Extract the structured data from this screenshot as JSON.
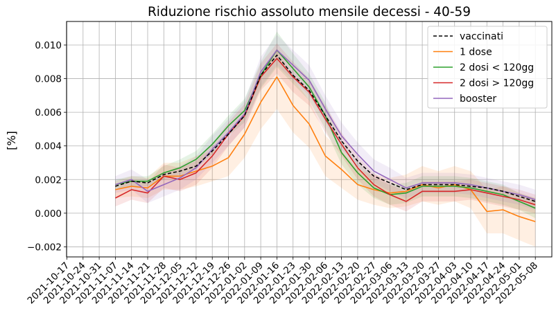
{
  "chart_data": {
    "type": "line",
    "title": "Riduzione rischio assoluto mensile decessi - 40-59",
    "xlabel": "",
    "ylabel": "[%]",
    "ylim": [
      -0.0026,
      0.0114
    ],
    "yticks": [
      -0.002,
      0.0,
      0.002,
      0.004,
      0.006,
      0.008,
      0.01
    ],
    "ytick_labels": [
      "−0.002",
      "0.000",
      "0.002",
      "0.004",
      "0.006",
      "0.008",
      "0.010"
    ],
    "grid": true,
    "legend_position": "top-right",
    "categories": [
      "2021-10-17",
      "2021-10-24",
      "2021-10-31",
      "2021-11-07",
      "2021-11-14",
      "2021-11-21",
      "2021-11-28",
      "2021-12-05",
      "2021-12-12",
      "2021-12-19",
      "2021-12-26",
      "2022-01-02",
      "2022-01-09",
      "2022-01-16",
      "2022-01-23",
      "2022-01-30",
      "2022-02-06",
      "2022-02-13",
      "2022-02-20",
      "2022-02-27",
      "2022-03-06",
      "2022-03-13",
      "2022-03-20",
      "2022-03-27",
      "2022-04-03",
      "2022-04-10",
      "2022-04-17",
      "2022-04-24",
      "2022-05-01",
      "2022-05-08"
    ],
    "series": [
      {
        "name": "vaccinati",
        "color": "#000000",
        "dashed": true,
        "values": [
          null,
          null,
          null,
          0.0016,
          0.0019,
          0.0018,
          0.0023,
          0.0025,
          0.0028,
          0.0037,
          0.0047,
          0.0058,
          0.0082,
          0.0094,
          0.0082,
          0.0073,
          0.0058,
          0.0043,
          0.0031,
          0.0022,
          0.0018,
          0.0014,
          0.0017,
          0.0017,
          0.0017,
          0.0016,
          0.0015,
          0.0013,
          0.001,
          0.0007
        ],
        "band": null
      },
      {
        "name": "1 dose",
        "color": "#ff7f0e",
        "dashed": false,
        "values": [
          null,
          null,
          null,
          0.0014,
          0.0016,
          0.0015,
          0.0022,
          0.0022,
          0.0025,
          0.0028,
          0.0033,
          0.0047,
          0.0066,
          0.0081,
          0.0064,
          0.0053,
          0.0034,
          0.0026,
          0.0017,
          0.0014,
          0.0012,
          0.0013,
          0.0017,
          0.0015,
          0.0017,
          0.0014,
          0.0001,
          0.0002,
          -0.0002,
          -0.0005
        ],
        "band": {
          "lower": [
            null,
            null,
            null,
            0.0009,
            0.001,
            0.0009,
            0.0014,
            0.0014,
            0.0016,
            0.0019,
            0.0022,
            0.0033,
            0.005,
            0.0062,
            0.0048,
            0.0039,
            0.0022,
            0.0015,
            0.0008,
            0.0005,
            0.0003,
            0.0004,
            0.0007,
            0.0005,
            0.0007,
            0.0003,
            -0.0012,
            -0.0012,
            -0.0016,
            -0.002
          ],
          "upper": [
            null,
            null,
            null,
            0.0019,
            0.0022,
            0.0021,
            0.003,
            0.003,
            0.0034,
            0.0037,
            0.0044,
            0.0061,
            0.0082,
            0.0098,
            0.008,
            0.0067,
            0.0046,
            0.0037,
            0.0026,
            0.0023,
            0.0021,
            0.0023,
            0.0028,
            0.0025,
            0.0028,
            0.0025,
            0.0014,
            0.0016,
            0.0012,
            0.0009
          ]
        }
      },
      {
        "name": "2 dosi < 120gg",
        "color": "#2ca02c",
        "dashed": false,
        "values": [
          null,
          null,
          null,
          0.0017,
          0.0019,
          0.0019,
          0.0024,
          0.0027,
          0.0032,
          0.0041,
          0.0052,
          0.0061,
          0.0082,
          0.0097,
          0.0086,
          0.0075,
          0.0058,
          0.0036,
          0.0024,
          0.0015,
          0.0011,
          0.0012,
          0.0016,
          0.0016,
          0.0016,
          0.0015,
          0.0013,
          0.0011,
          0.0007,
          0.0003
        ],
        "band": {
          "lower": [
            null,
            null,
            null,
            0.0014,
            0.0016,
            0.0016,
            0.002,
            0.0022,
            0.0027,
            0.0035,
            0.0046,
            0.0054,
            0.0074,
            0.0087,
            0.0077,
            0.0067,
            0.005,
            0.0029,
            0.0017,
            0.0009,
            0.0005,
            0.0006,
            0.001,
            0.001,
            0.001,
            0.0009,
            0.0007,
            0.0005,
            0.0002,
            -0.0003
          ],
          "upper": [
            null,
            null,
            null,
            0.002,
            0.0022,
            0.0022,
            0.0028,
            0.0032,
            0.0037,
            0.0047,
            0.0058,
            0.0068,
            0.009,
            0.0108,
            0.0095,
            0.0083,
            0.0066,
            0.0043,
            0.0031,
            0.0021,
            0.0017,
            0.0018,
            0.0022,
            0.0022,
            0.0022,
            0.0021,
            0.0019,
            0.0017,
            0.0012,
            0.0009
          ]
        }
      },
      {
        "name": "2 dosi > 120gg",
        "color": "#d62728",
        "dashed": false,
        "values": [
          null,
          null,
          null,
          0.0009,
          0.0014,
          0.0012,
          0.0022,
          0.002,
          0.0024,
          0.0034,
          0.0047,
          0.0058,
          0.0081,
          0.0092,
          0.0081,
          0.0072,
          0.0056,
          0.0041,
          0.0027,
          0.0017,
          0.0011,
          0.0007,
          0.0013,
          0.0013,
          0.0013,
          0.0014,
          0.0012,
          0.001,
          0.0008,
          0.0005
        ],
        "band": {
          "lower": [
            null,
            null,
            null,
            0.0004,
            0.0008,
            0.0006,
            0.0015,
            0.0013,
            0.0017,
            0.0027,
            0.004,
            0.0051,
            0.0073,
            0.0083,
            0.0072,
            0.0064,
            0.0048,
            0.0034,
            0.002,
            0.001,
            0.0005,
            0.0001,
            0.0007,
            0.0007,
            0.0007,
            0.0008,
            0.0006,
            0.0004,
            0.0002,
            0.0
          ],
          "upper": [
            null,
            null,
            null,
            0.0014,
            0.002,
            0.0018,
            0.0029,
            0.0027,
            0.0031,
            0.0041,
            0.0054,
            0.0065,
            0.0089,
            0.0101,
            0.009,
            0.008,
            0.0064,
            0.0048,
            0.0034,
            0.0024,
            0.0017,
            0.0013,
            0.0019,
            0.0019,
            0.0019,
            0.002,
            0.0018,
            0.0016,
            0.0014,
            0.0011
          ]
        }
      },
      {
        "name": "booster",
        "color": "#9467bd",
        "dashed": false,
        "values": [
          null,
          null,
          null,
          0.0017,
          0.002,
          0.0013,
          0.0017,
          0.0021,
          0.0027,
          0.0038,
          0.0048,
          0.0059,
          0.0084,
          0.0097,
          0.0088,
          0.0079,
          0.0062,
          0.0046,
          0.0035,
          0.0025,
          0.002,
          0.0015,
          0.0018,
          0.0018,
          0.0018,
          0.0017,
          0.0015,
          0.0013,
          0.0011,
          0.0008
        ],
        "band": {
          "lower": [
            null,
            null,
            null,
            0.0012,
            0.0014,
            0.0006,
            0.001,
            0.0014,
            0.002,
            0.003,
            0.004,
            0.0051,
            0.0075,
            0.0088,
            0.0079,
            0.007,
            0.0054,
            0.0038,
            0.0028,
            0.0018,
            0.0013,
            0.0009,
            0.0012,
            0.0012,
            0.0012,
            0.0011,
            0.0009,
            0.0007,
            0.0005,
            0.0002
          ],
          "upper": [
            null,
            null,
            null,
            0.0022,
            0.0026,
            0.002,
            0.0024,
            0.0028,
            0.0034,
            0.0046,
            0.0056,
            0.0067,
            0.0093,
            0.0106,
            0.0097,
            0.0088,
            0.007,
            0.0054,
            0.0042,
            0.0032,
            0.0027,
            0.0021,
            0.0024,
            0.0024,
            0.0024,
            0.0023,
            0.0021,
            0.0019,
            0.0017,
            0.0014
          ]
        }
      }
    ]
  }
}
